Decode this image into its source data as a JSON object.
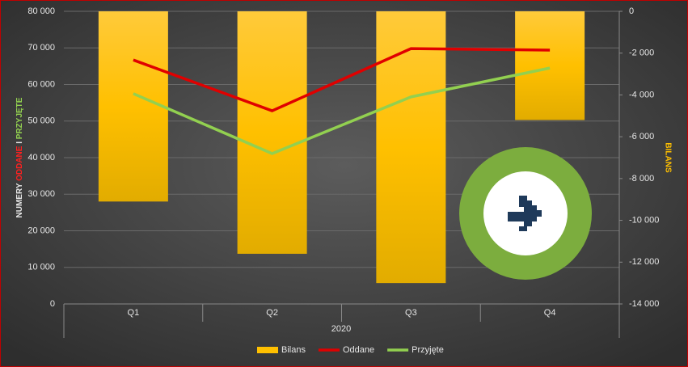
{
  "chart_data": {
    "type": "combo",
    "categories": [
      "Q1",
      "Q2",
      "Q3",
      "Q4"
    ],
    "group_label": "2020",
    "ylabel": [
      "NUMERY",
      "ODDANE",
      "I",
      "PRZYJĘTE"
    ],
    "y2label": "BILANS",
    "ylim": [
      0,
      80000
    ],
    "yticks": [
      0,
      {
        "value": 10000,
        "label": "10 000"
      },
      {
        "value": 20000,
        "label": "20 000"
      },
      {
        "value": 30000,
        "label": "30 000"
      },
      {
        "value": 40000,
        "label": "40 000"
      },
      {
        "value": 50000,
        "label": "50 000"
      },
      {
        "value": 60000,
        "label": "60 000"
      },
      {
        "value": 70000,
        "label": "70 000"
      },
      {
        "value": 80000,
        "label": "80 000"
      }
    ],
    "y2lim": [
      -14000,
      0
    ],
    "y2ticks": [
      0,
      {
        "value": -2000,
        "label": "-2 000"
      },
      {
        "value": -4000,
        "label": "-4 000"
      },
      {
        "value": -6000,
        "label": "-6 000"
      },
      {
        "value": -8000,
        "label": "-8 000"
      },
      {
        "value": -10000,
        "label": "-10 000"
      },
      {
        "value": -12000,
        "label": "-12 000"
      },
      {
        "value": -14000,
        "label": "-14 000"
      }
    ],
    "series": [
      {
        "name": "Bilans",
        "type": "bar",
        "axis": "y2",
        "color": "#ffc000",
        "values": [
          -9100,
          -11600,
          -13000,
          -5200
        ]
      },
      {
        "name": "Oddane",
        "type": "line",
        "color": "#e00000",
        "values": [
          66700,
          52800,
          69800,
          69400
        ]
      },
      {
        "name": "Przyjęte",
        "type": "line",
        "color": "#92d050",
        "values": [
          57500,
          41100,
          56600,
          64500
        ]
      }
    ]
  }
}
